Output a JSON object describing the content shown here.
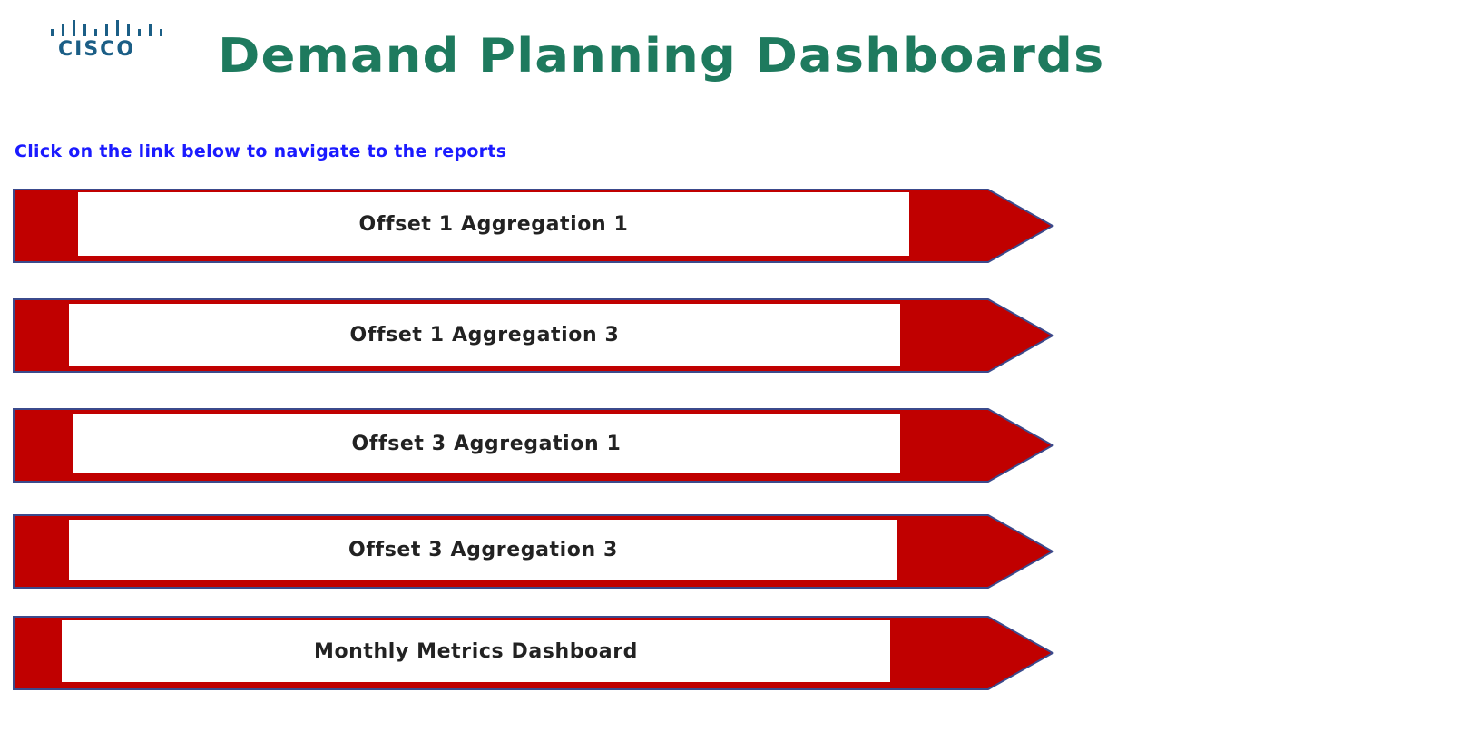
{
  "header": {
    "logo_text": "CISCO",
    "logo_icon": "cisco-bars-icon",
    "title": "Demand Planning Dashboards"
  },
  "instruction": "Click on the link below to navigate to the reports",
  "links": [
    {
      "label": "Offset 1 Aggregation 1"
    },
    {
      "label": "Offset 1 Aggregation 3"
    },
    {
      "label": "Offset 3 Aggregation 1"
    },
    {
      "label": "Offset 3 Aggregation 3"
    },
    {
      "label": "Monthly Metrics Dashboard"
    }
  ],
  "colors": {
    "title": "#1e7a5e",
    "instruction": "#1a1aff",
    "arrow_fill": "#c00000",
    "arrow_border": "#3b4a8c",
    "logo": "#1b5e86"
  }
}
